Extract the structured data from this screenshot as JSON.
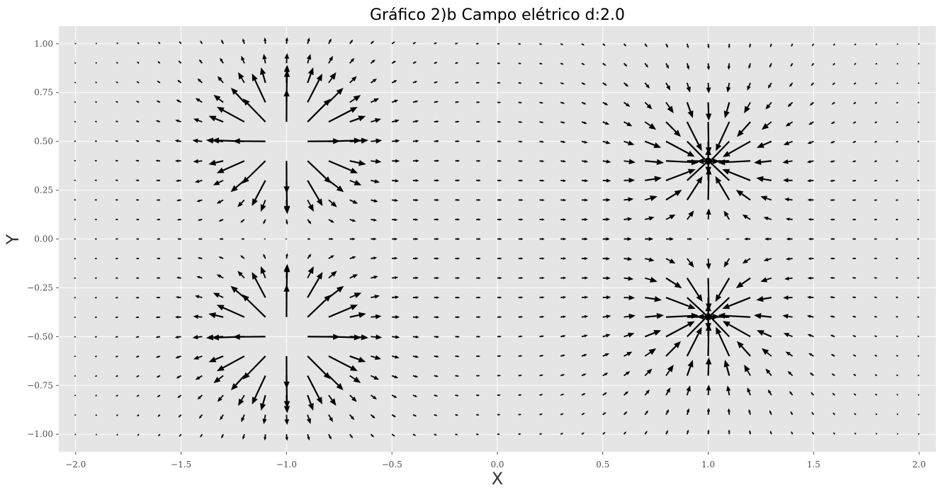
{
  "chart_data": {
    "type": "quiver",
    "title": "Gráfico 2)b Campo elétrico d:2.0",
    "xlabel": "X",
    "ylabel": "Y",
    "xlim": [
      -2.08,
      2.08
    ],
    "ylim": [
      -1.09,
      1.09
    ],
    "xticks": [
      -2.0,
      -1.5,
      -1.0,
      -0.5,
      0.0,
      0.5,
      1.0,
      1.5,
      2.0
    ],
    "xtick_labels": [
      "−2.0",
      "−1.5",
      "−1.0",
      "−0.5",
      "0.0",
      "0.5",
      "1.0",
      "1.5",
      "2.0"
    ],
    "yticks": [
      -1.0,
      -0.75,
      -0.5,
      -0.25,
      0.0,
      0.25,
      0.5,
      0.75,
      1.0
    ],
    "ytick_labels": [
      "−1.00",
      "−0.75",
      "−0.50",
      "−0.25",
      "0.00",
      "0.25",
      "0.50",
      "0.75",
      "1.00"
    ],
    "grid": true,
    "style": "ggplot",
    "background_color": "#e5e5e5",
    "grid_color": "#ffffff",
    "arrow_color": "#000000",
    "vector_grid": {
      "x_start": -2.0,
      "x_end": 2.0,
      "x_step": 0.1,
      "y_start": -1.0,
      "y_end": 1.0,
      "y_step": 0.1
    },
    "charges": [
      {
        "sign": "+",
        "x": -1.0,
        "y": 0.5
      },
      {
        "sign": "+",
        "x": -1.0,
        "y": -0.5
      },
      {
        "sign": "-",
        "x": 1.0,
        "y": 0.4
      },
      {
        "sign": "-",
        "x": 1.0,
        "y": -0.4
      }
    ]
  }
}
